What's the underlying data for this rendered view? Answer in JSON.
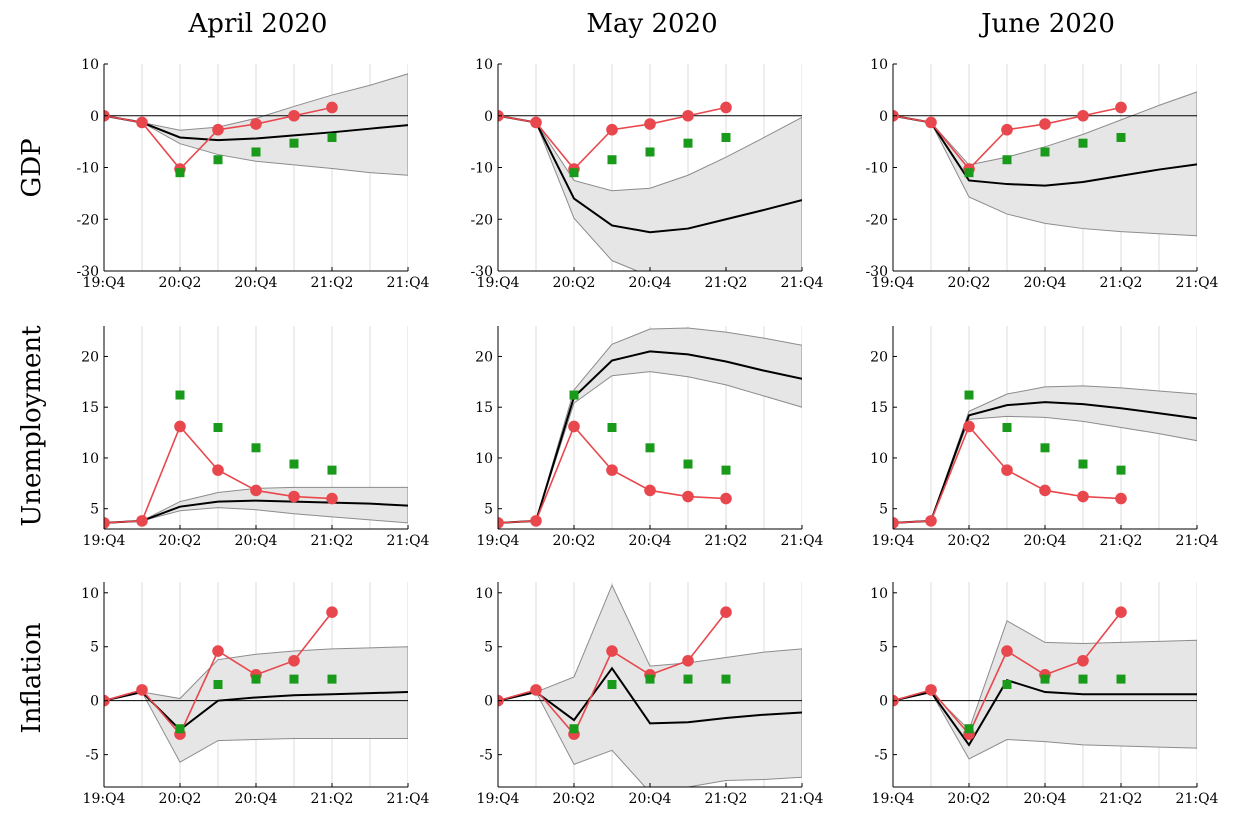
{
  "columns": [
    "April 2020",
    "May 2020",
    "June 2020"
  ],
  "rows": [
    "GDP",
    "Unemployment",
    "Inflation"
  ],
  "colors": {
    "actual": "#e8484d",
    "central": "#000000",
    "survey": "#1a9a1a",
    "band_fill": "#e6e6e6",
    "band_edge": "#8c8c8c"
  },
  "chart_data": {
    "type": "line",
    "x": [
      "19:Q4",
      "20:Q1",
      "20:Q2",
      "20:Q3",
      "20:Q4",
      "21:Q1",
      "21:Q2",
      "21:Q3",
      "21:Q4"
    ],
    "x_tick_labels": [
      "19:Q4",
      "20:Q2",
      "20:Q4",
      "21:Q2",
      "21:Q4"
    ],
    "y_axes": {
      "GDP": {
        "ylim": [
          -30,
          10
        ],
        "ticks": [
          10,
          0,
          -10,
          -20,
          -30
        ]
      },
      "Unemployment": {
        "ylim": [
          3,
          23
        ],
        "ticks": [
          20,
          15,
          10,
          5
        ]
      },
      "Inflation": {
        "ylim": [
          -8,
          11
        ],
        "ticks": [
          10,
          5,
          0,
          -5
        ]
      }
    },
    "actual": {
      "GDP": [
        0,
        -1.3,
        -10.3,
        -2.7,
        -1.6,
        0,
        1.6
      ],
      "Unemployment": [
        3.6,
        3.8,
        13.1,
        8.8,
        6.8,
        6.2,
        6.0
      ],
      "Inflation": [
        0,
        1.0,
        -3.1,
        4.6,
        2.4,
        3.7,
        8.2
      ]
    },
    "survey": {
      "x_index": [
        2,
        3,
        4,
        5,
        6
      ],
      "GDP": [
        -11,
        -8.5,
        -7,
        -5.3,
        -4.2
      ],
      "Unemployment": [
        16.2,
        13.0,
        11.0,
        9.4,
        8.8
      ],
      "Inflation": [
        -2.6,
        1.5,
        2.0,
        2.0,
        2.0
      ]
    },
    "panels": [
      {
        "row": "GDP",
        "column": "April 2020",
        "central": [
          0,
          -1.3,
          -4.2,
          -4.7,
          -4.4,
          -3.8,
          -3.2,
          -2.5,
          -1.8
        ],
        "upper": [
          0,
          -1.3,
          -2.8,
          -2.2,
          -0.5,
          1.8,
          4.0,
          5.9,
          8.1
        ],
        "lower": [
          0,
          -1.3,
          -5.4,
          -7.5,
          -8.8,
          -9.5,
          -10.2,
          -11.0,
          -11.5
        ]
      },
      {
        "row": "GDP",
        "column": "May 2020",
        "central": [
          0,
          -1.3,
          -16.0,
          -21.2,
          -22.5,
          -21.8,
          -20.0,
          -18.2,
          -16.3
        ],
        "upper": [
          0,
          -1.3,
          -12.5,
          -14.5,
          -14.0,
          -11.5,
          -8.0,
          -4.2,
          -0.3
        ],
        "lower": [
          0,
          -1.3,
          -19.8,
          -28.0,
          -31.0,
          -31.0,
          -31.0,
          -31.0,
          -31.0
        ]
      },
      {
        "row": "GDP",
        "column": "June 2020",
        "central": [
          0,
          -1.3,
          -12.5,
          -13.2,
          -13.5,
          -12.8,
          -11.6,
          -10.4,
          -9.4
        ],
        "upper": [
          0,
          -1.3,
          -9.5,
          -8.0,
          -6.0,
          -3.6,
          -0.8,
          2.0,
          4.6
        ],
        "lower": [
          0,
          -1.3,
          -15.7,
          -19.0,
          -20.8,
          -21.8,
          -22.4,
          -22.8,
          -23.2
        ]
      },
      {
        "row": "Unemployment",
        "column": "April 2020",
        "central": [
          3.6,
          3.8,
          5.2,
          5.7,
          5.8,
          5.7,
          5.6,
          5.5,
          5.3
        ],
        "upper": [
          3.6,
          3.8,
          5.7,
          6.6,
          7.0,
          7.1,
          7.1,
          7.1,
          7.1
        ],
        "lower": [
          3.6,
          3.8,
          4.8,
          5.1,
          4.9,
          4.5,
          4.2,
          3.9,
          3.6
        ]
      },
      {
        "row": "Unemployment",
        "column": "May 2020",
        "central": [
          3.6,
          3.8,
          16.0,
          19.6,
          20.5,
          20.2,
          19.5,
          18.6,
          17.8
        ],
        "upper": [
          3.6,
          3.8,
          16.7,
          21.2,
          22.7,
          22.8,
          22.4,
          21.8,
          21.1
        ],
        "lower": [
          3.6,
          3.8,
          15.4,
          18.1,
          18.5,
          18.0,
          17.2,
          16.1,
          15.0
        ]
      },
      {
        "row": "Unemployment",
        "column": "June 2020",
        "central": [
          3.6,
          3.8,
          14.2,
          15.2,
          15.5,
          15.3,
          14.9,
          14.4,
          13.9
        ],
        "upper": [
          3.6,
          3.8,
          14.6,
          16.3,
          17.0,
          17.1,
          16.9,
          16.6,
          16.3
        ],
        "lower": [
          3.6,
          3.8,
          13.8,
          14.1,
          14.0,
          13.6,
          13.0,
          12.4,
          11.7
        ]
      },
      {
        "row": "Inflation",
        "column": "April 2020",
        "central": [
          0,
          0.8,
          -2.7,
          0,
          0.3,
          0.5,
          0.6,
          0.7,
          0.8
        ],
        "upper": [
          0,
          0.8,
          0.2,
          3.8,
          4.3,
          4.6,
          4.8,
          4.9,
          5.0
        ],
        "lower": [
          0,
          0.8,
          -5.7,
          -3.7,
          -3.6,
          -3.5,
          -3.5,
          -3.5,
          -3.5
        ]
      },
      {
        "row": "Inflation",
        "column": "May 2020",
        "central": [
          0,
          0.8,
          -1.8,
          3.0,
          -2.1,
          -2.0,
          -1.6,
          -1.3,
          -1.1
        ],
        "upper": [
          0,
          0.8,
          2.2,
          10.7,
          3.2,
          3.5,
          4.0,
          4.5,
          4.8
        ],
        "lower": [
          0,
          0.8,
          -5.9,
          -4.6,
          -8.5,
          -8.0,
          -7.4,
          -7.3,
          -7.1
        ]
      },
      {
        "row": "Inflation",
        "column": "June 2020",
        "central": [
          0,
          0.8,
          -4.1,
          1.9,
          0.8,
          0.6,
          0.6,
          0.6,
          0.6
        ],
        "upper": [
          0,
          0.8,
          -2.7,
          7.4,
          5.4,
          5.3,
          5.4,
          5.5,
          5.6
        ],
        "lower": [
          0,
          0.8,
          -5.4,
          -3.6,
          -3.8,
          -4.1,
          -4.2,
          -4.3,
          -4.4
        ]
      }
    ]
  }
}
